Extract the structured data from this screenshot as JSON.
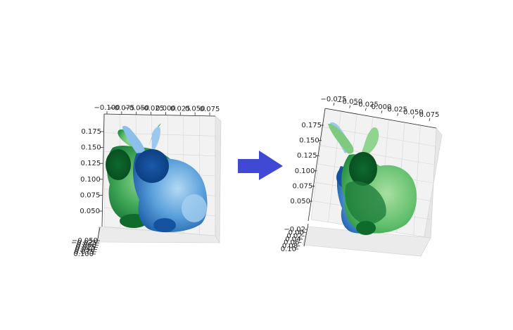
{
  "chart_data": [
    {
      "type": "scatter",
      "projection": "3d",
      "title": "",
      "xlabel": "",
      "ylabel": "",
      "zlabel": "",
      "grid": true,
      "top_axis_ticks": [
        "−0.100",
        "−0.075",
        "−0.050",
        "−0.025",
        "0.000",
        "0.025",
        "0.050",
        "0.075"
      ],
      "left_axis_ticks": [
        "0.175",
        "0.150",
        "0.125",
        "0.100",
        "0.075",
        "0.050"
      ],
      "bottom_axis_ticks": [
        "−0.050",
        "−0.025",
        "0.000",
        "0.025",
        "0.050",
        "0.075",
        "0.100"
      ],
      "series": [
        {
          "shape": "bunny",
          "color": "#2e9e4e",
          "colormap": "Greens"
        },
        {
          "shape": "bunny",
          "color": "#3f8fd6",
          "colormap": "Blues"
        }
      ]
    },
    {
      "type": "scatter",
      "projection": "3d",
      "title": "",
      "xlabel": "",
      "ylabel": "",
      "zlabel": "",
      "grid": true,
      "top_axis_ticks": [
        "−0.075",
        "−0.050",
        "−0.025",
        "0.000",
        "0.025",
        "0.050",
        "0.075"
      ],
      "left_axis_ticks": [
        "0.175",
        "0.150",
        "0.125",
        "0.100",
        "0.075",
        "0.050"
      ],
      "bottom_axis_ticks": [
        "−0.02",
        "0.00",
        "0.02",
        "0.04",
        "0.06",
        "0.08",
        "0.10"
      ],
      "series": [
        {
          "shape": "bunny",
          "color": "#3f8fd6",
          "colormap": "Blues"
        },
        {
          "shape": "bunny",
          "color": "#2e9e4e",
          "colormap": "Greens"
        }
      ]
    }
  ],
  "arrow": {
    "color": "#3f49d3",
    "direction": "right"
  }
}
